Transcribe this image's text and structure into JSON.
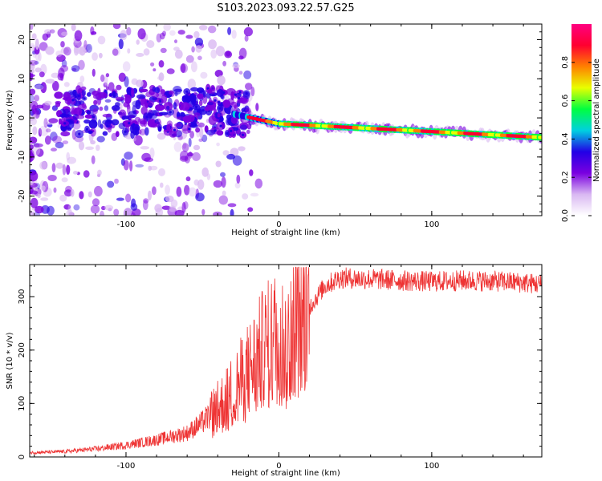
{
  "title": "S103.2023.093.22.57.G25",
  "chart_data": [
    {
      "type": "heatmap",
      "xlabel": "Height of straight line (km)",
      "ylabel": "Frequency (Hz)",
      "xlim": [
        -163,
        172
      ],
      "ylim": [
        -25,
        24
      ],
      "x_ticks": [
        -100,
        0,
        100
      ],
      "y_ticks": [
        -20,
        -10,
        0,
        10,
        20
      ],
      "colorbar": {
        "label": "Normalized spectral amplitude",
        "range": [
          0,
          1
        ],
        "ticks": [
          0.0,
          0.2,
          0.4,
          0.6,
          0.8
        ],
        "colormap": [
          "#ffffff",
          "#d9b8f2",
          "#7a00e0",
          "#2200e6",
          "#00d0e0",
          "#00ff40",
          "#e8ff00",
          "#ff8000",
          "#ff0030",
          "#ff0080"
        ]
      },
      "ridge": {
        "description_x": [
          -30,
          0,
          50,
          100,
          172
        ],
        "frequency_hz": [
          1,
          -1.5,
          -2.5,
          -3.5,
          -5
        ],
        "peak_amplitude_by_segment": [
          0.5,
          0.85,
          0.9,
          0.9,
          0.85
        ]
      }
    },
    {
      "type": "line",
      "xlabel": "Height of straight line (km)",
      "ylabel": "SNR (10 * v/v)",
      "xlim": [
        -163,
        172
      ],
      "ylim": [
        0,
        360
      ],
      "x_ticks": [
        -100,
        0,
        100
      ],
      "y_ticks": [
        0,
        100,
        200,
        300
      ],
      "series": [
        {
          "color": "#ee3333",
          "x": [
            -163,
            -140,
            -120,
            -100,
            -80,
            -60,
            -50,
            -40,
            -30,
            -20,
            -10,
            0,
            5,
            10,
            15,
            20,
            25,
            30,
            40,
            60,
            80,
            100,
            120,
            140,
            160,
            172
          ],
          "y": [
            8,
            10,
            15,
            22,
            32,
            45,
            65,
            90,
            120,
            160,
            200,
            230,
            200,
            255,
            265,
            280,
            300,
            320,
            335,
            333,
            330,
            328,
            330,
            329,
            326,
            323
          ]
        }
      ]
    }
  ]
}
